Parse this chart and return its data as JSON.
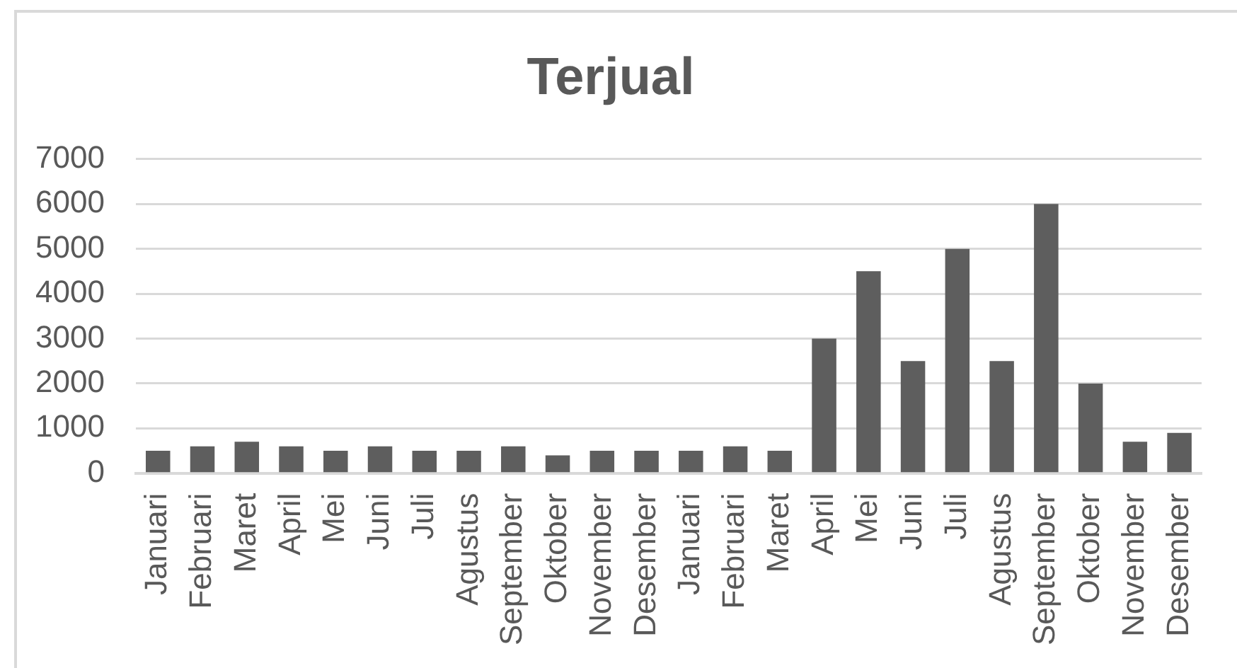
{
  "chart_data": {
    "type": "bar",
    "title": "Terjual",
    "categories": [
      "Januari",
      "Februari",
      "Maret",
      "April",
      "Mei",
      "Juni",
      "Juli",
      "Agustus",
      "September",
      "Oktober",
      "November",
      "Desember",
      "Januari",
      "Februari",
      "Maret",
      "April",
      "Mei",
      "Juni",
      "Juli",
      "Agustus",
      "September",
      "Oktober",
      "November",
      "Desember"
    ],
    "values": [
      500,
      600,
      700,
      600,
      500,
      600,
      500,
      500,
      600,
      400,
      500,
      500,
      500,
      600,
      500,
      3000,
      4500,
      2500,
      5000,
      2500,
      6000,
      2000,
      700,
      900
    ],
    "color": "#5e5e5e",
    "ylim": [
      0,
      7000
    ],
    "yticks": [
      0,
      1000,
      2000,
      3000,
      4000,
      5000,
      6000,
      7000
    ],
    "grid": "y"
  }
}
